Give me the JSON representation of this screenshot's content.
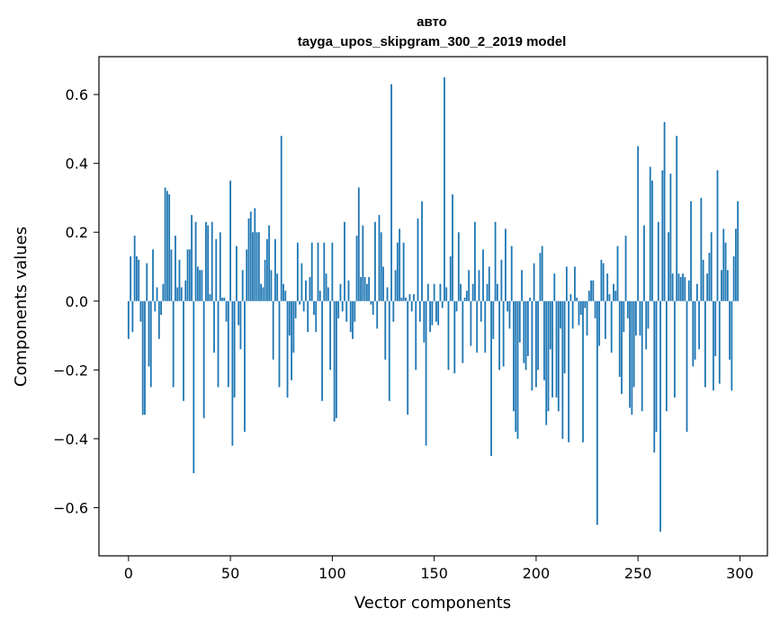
{
  "chart_data": {
    "type": "bar",
    "title_line1": "авто",
    "title_line2": "tayga_upos_skipgram_300_2_2019 model",
    "xlabel": "Vector components",
    "ylabel": "Components values",
    "xlim": [
      -14.5,
      313.5
    ],
    "ylim": [
      -0.74,
      0.71
    ],
    "xticks": [
      0,
      50,
      100,
      150,
      200,
      250,
      300
    ],
    "xtick_labels": [
      "0",
      "50",
      "100",
      "150",
      "200",
      "250",
      "300"
    ],
    "yticks": [
      -0.6,
      -0.4,
      -0.2,
      0.0,
      0.2,
      0.4,
      0.6
    ],
    "ytick_labels": [
      "−0.6",
      "−0.4",
      "−0.2",
      "0.0",
      "0.2",
      "0.4",
      "0.6"
    ],
    "bar_color": "#1f77b4",
    "values": [
      -0.11,
      0.13,
      -0.09,
      0.19,
      0.13,
      0.12,
      -0.06,
      -0.33,
      -0.33,
      0.11,
      -0.19,
      -0.25,
      0.15,
      -0.03,
      0.04,
      -0.11,
      -0.04,
      0.05,
      0.33,
      0.32,
      0.31,
      0.15,
      -0.25,
      0.19,
      0.04,
      0.12,
      0.04,
      -0.29,
      0.06,
      0.15,
      0.15,
      0.25,
      -0.5,
      0.23,
      0.1,
      0.09,
      0.09,
      -0.34,
      0.23,
      0.22,
      0.02,
      0.23,
      -0.15,
      0.18,
      -0.25,
      0.2,
      0.01,
      0.01,
      -0.06,
      -0.25,
      0.35,
      -0.42,
      -0.28,
      0.16,
      -0.07,
      -0.14,
      0.09,
      -0.38,
      0.15,
      0.24,
      0.26,
      0.2,
      0.27,
      0.2,
      0.2,
      0.05,
      0.04,
      0.12,
      0.18,
      0.22,
      0.09,
      -0.17,
      0.18,
      0.08,
      -0.25,
      0.48,
      0.05,
      0.03,
      -0.28,
      -0.1,
      -0.23,
      -0.15,
      -0.05,
      0.17,
      -0.01,
      0.11,
      -0.03,
      0.06,
      -0.09,
      0.07,
      0.17,
      -0.04,
      -0.09,
      0.17,
      0.03,
      -0.29,
      0.17,
      0.08,
      0.04,
      -0.2,
      0.17,
      -0.35,
      -0.34,
      -0.05,
      0.05,
      -0.03,
      0.23,
      -0.06,
      0.06,
      -0.09,
      -0.11,
      -0.06,
      0.19,
      0.33,
      0.07,
      0.22,
      0.07,
      0.05,
      0.07,
      -0.01,
      -0.04,
      0.23,
      -0.08,
      0.25,
      0.2,
      0.1,
      -0.17,
      0.04,
      -0.29,
      0.63,
      -0.06,
      0.09,
      0.17,
      0.21,
      0.01,
      0.17,
      0.01,
      -0.33,
      0.02,
      -0.03,
      0.02,
      -0.2,
      0.24,
      -0.06,
      0.29,
      -0.12,
      -0.42,
      0.05,
      -0.09,
      -0.07,
      0.05,
      -0.06,
      -0.07,
      0.05,
      -0.02,
      0.65,
      0.04,
      -0.2,
      0.13,
      0.31,
      -0.21,
      -0.03,
      0.2,
      0.05,
      -0.18,
      0.01,
      0.03,
      0.09,
      -0.13,
      0.05,
      0.23,
      -0.15,
      0.09,
      -0.06,
      0.15,
      -0.15,
      0.05,
      0.1,
      -0.45,
      -0.11,
      0.23,
      0.05,
      -0.2,
      0.12,
      -0.19,
      0.21,
      -0.03,
      -0.08,
      0.16,
      -0.32,
      -0.38,
      -0.4,
      -0.12,
      0.09,
      -0.18,
      -0.2,
      -0.16,
      0.01,
      -0.26,
      0.11,
      -0.25,
      -0.2,
      0.14,
      0.16,
      -0.23,
      -0.36,
      -0.32,
      -0.14,
      -0.28,
      0.08,
      -0.28,
      -0.32,
      -0.08,
      -0.4,
      -0.21,
      0.1,
      -0.41,
      0.02,
      -0.08,
      0.1,
      0.01,
      -0.07,
      -0.04,
      -0.41,
      -0.02,
      -0.1,
      0.03,
      0.06,
      0.06,
      -0.05,
      -0.65,
      -0.13,
      0.12,
      0.11,
      -0.11,
      0.08,
      0.02,
      -0.15,
      0.05,
      0.03,
      0.16,
      -0.22,
      -0.27,
      -0.09,
      0.19,
      -0.05,
      -0.31,
      -0.33,
      -0.25,
      -0.1,
      0.45,
      -0.1,
      -0.32,
      0.22,
      -0.14,
      -0.08,
      0.39,
      0.35,
      -0.44,
      -0.38,
      0.23,
      -0.67,
      0.38,
      0.52,
      -0.32,
      0.2,
      0.37,
      0.08,
      -0.28,
      0.48,
      0.08,
      0.07,
      0.08,
      0.07,
      -0.38,
      0.06,
      0.29,
      -0.19,
      -0.17,
      0.05,
      -0.14,
      0.3,
      0.12,
      -0.25,
      0.08,
      0.14,
      0.2,
      -0.26,
      -0.16,
      0.38,
      -0.24,
      0.09,
      0.21,
      0.17,
      0.09,
      -0.17,
      -0.26,
      0.13,
      0.21,
      0.29
    ]
  }
}
